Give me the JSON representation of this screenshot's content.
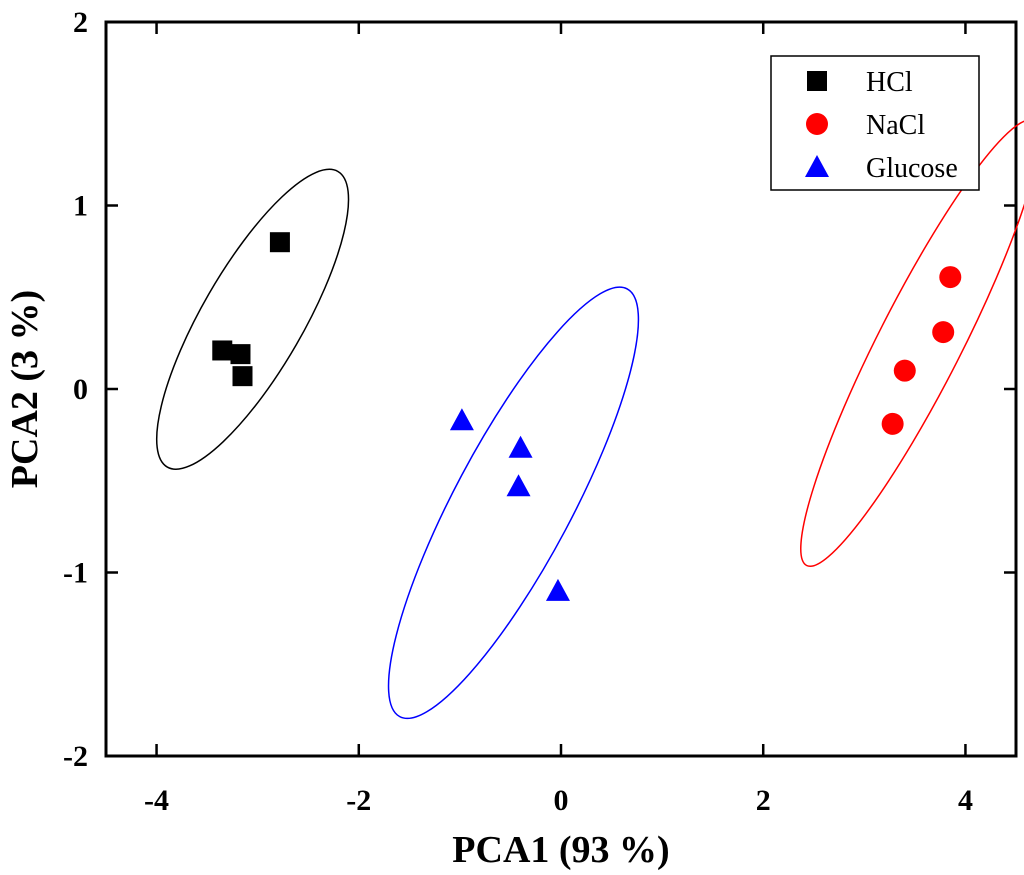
{
  "chart_data": {
    "type": "scatter",
    "title": "",
    "xlabel": "PCA1 (93 %)",
    "ylabel": "PCA2 (3 %)",
    "xlim": [
      -4.5,
      4.5
    ],
    "ylim": [
      -2,
      2
    ],
    "xticks": [
      -4,
      -2,
      0,
      2,
      4
    ],
    "yticks": [
      -2,
      -1,
      0,
      1,
      2
    ],
    "x_tick_labels": [
      "-4",
      "-2",
      "0",
      "2",
      "4"
    ],
    "y_tick_labels": [
      "-2",
      "-1",
      "0",
      "1",
      "2"
    ],
    "grid": false,
    "legend_position": "top-right",
    "series": [
      {
        "name": "HCl",
        "marker": "square",
        "color": "#000000",
        "points": [
          [
            -3.35,
            0.21
          ],
          [
            -3.17,
            0.19
          ],
          [
            -3.15,
            0.07
          ],
          [
            -2.78,
            0.8
          ]
        ],
        "ellipse": {
          "cx": -3.05,
          "cy": 0.38,
          "rx": 0.5,
          "ry": 0.93,
          "angle_deg": 30
        }
      },
      {
        "name": "NaCl",
        "marker": "circle",
        "color": "#ff0000",
        "points": [
          [
            3.28,
            -0.19
          ],
          [
            3.4,
            0.1
          ],
          [
            3.78,
            0.31
          ],
          [
            3.85,
            0.61
          ]
        ],
        "ellipse": {
          "cx": 3.55,
          "cy": 0.25,
          "rx": 0.41,
          "ry": 1.36,
          "angle_deg": 27
        }
      },
      {
        "name": "Glucose",
        "marker": "triangle",
        "color": "#0000ff",
        "points": [
          [
            -0.98,
            -0.17
          ],
          [
            -0.4,
            -0.32
          ],
          [
            -0.42,
            -0.53
          ],
          [
            -0.03,
            -1.1
          ]
        ],
        "ellipse": {
          "cx": -0.47,
          "cy": -0.62,
          "rx": 0.58,
          "ry": 1.32,
          "angle_deg": 28
        }
      }
    ]
  }
}
